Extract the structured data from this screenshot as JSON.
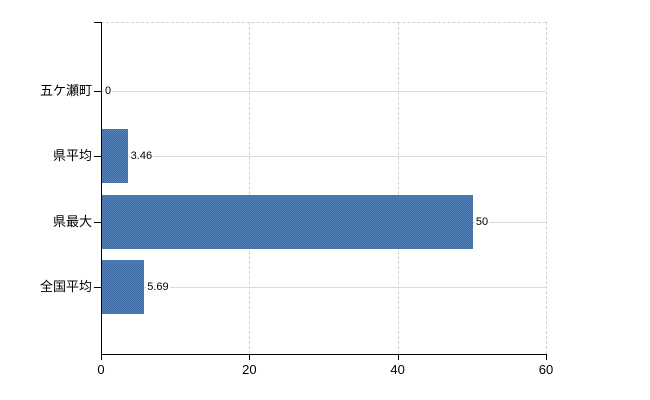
{
  "chart_data": {
    "type": "bar",
    "orientation": "horizontal",
    "title": "",
    "xlabel": "",
    "ylabel": "",
    "categories": [
      "五ケ瀬町",
      "県平均",
      "県最大",
      "全国平均"
    ],
    "values": [
      0,
      3.46,
      50,
      5.69
    ],
    "value_labels": [
      "0",
      "3.46",
      "50",
      "5.69"
    ],
    "xlim": [
      0,
      60
    ],
    "xticks": [
      0,
      20,
      40,
      60
    ],
    "xtick_labels": [
      "0",
      "20",
      "40",
      "60"
    ],
    "legend": "none",
    "grid": {
      "horizontal": "solid line at each category center",
      "vertical": "dashed lines at 20, 40, 60 and dashed top border"
    },
    "colors": {
      "bar": "#4876ae",
      "grid_h": "#d6dcd6",
      "grid_v": "#d0d0d0",
      "axis": "#000000",
      "text": "#000000",
      "background": "#ffffff"
    }
  }
}
